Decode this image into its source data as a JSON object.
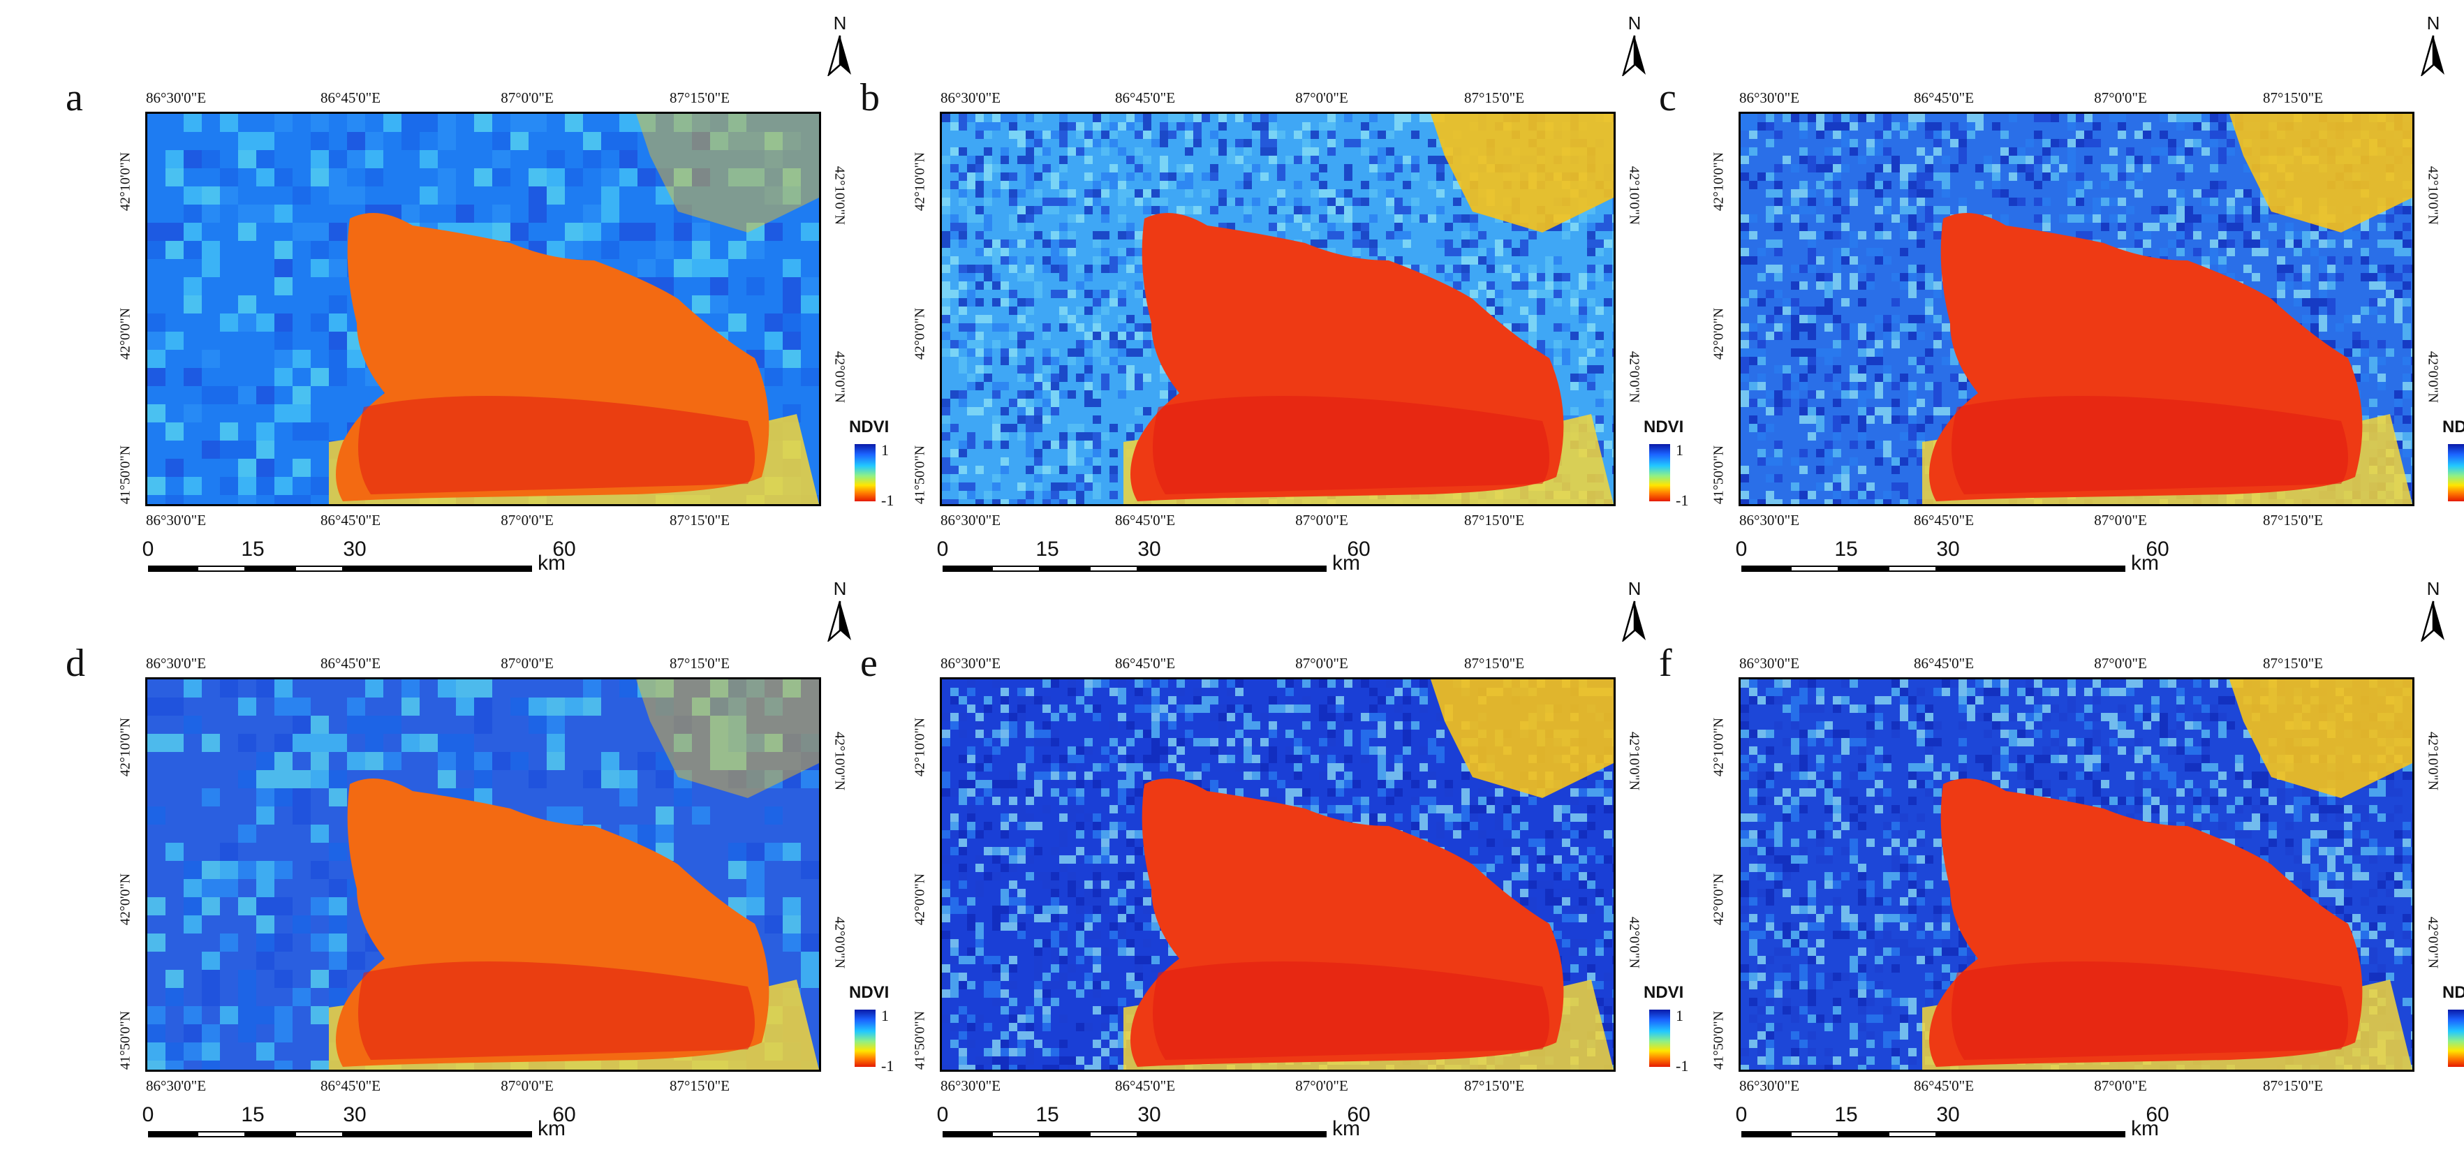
{
  "figure": {
    "north_label": "N",
    "legend": {
      "title": "NDVI",
      "max_label": "1",
      "min_label": "-1",
      "colors": [
        "#0a1aa8",
        "#1b63ff",
        "#22c8ff",
        "#8cf08a",
        "#ffe600",
        "#ff7a00",
        "#e41a00"
      ]
    },
    "longitude_labels_top": [
      "86°30'0\"E",
      "86°45'0\"E",
      "87°0'0\"E",
      "87°15'0\"E"
    ],
    "longitude_labels_bottom": [
      "86°30'0\"E",
      "86°45'0\"E",
      "87°0'0\"E",
      "87°15'0\"E"
    ],
    "latitude_labels_left": [
      "42°10'0\"N",
      "42°0'0\"N",
      "41°50'0\"N"
    ],
    "latitude_labels_right": [
      "42°10'0\"N",
      "42°0'0\"N"
    ],
    "scale": {
      "labels": [
        "0",
        "15",
        "30",
        "60"
      ],
      "unit": "km"
    },
    "panels": [
      {
        "letter": "a",
        "style": "coarse",
        "land_tone": "#1e7cf2"
      },
      {
        "letter": "b",
        "style": "fine",
        "land_tone": "#3fa7f5"
      },
      {
        "letter": "c",
        "style": "fine",
        "land_tone": "#2a6fe8"
      },
      {
        "letter": "d",
        "style": "coarse",
        "land_tone": "#2a5fe0"
      },
      {
        "letter": "e",
        "style": "fine",
        "land_tone": "#1a3fd6"
      },
      {
        "letter": "f",
        "style": "fine",
        "land_tone": "#1d47d8"
      }
    ]
  }
}
